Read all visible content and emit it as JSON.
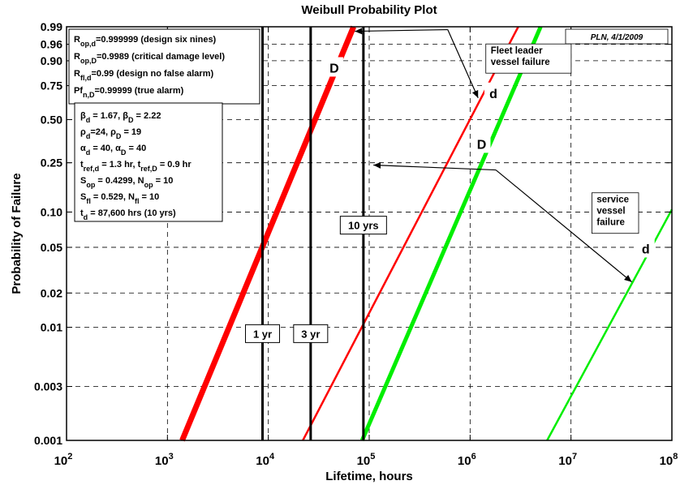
{
  "chart_data": {
    "type": "line",
    "title": "Weibull Probability Plot",
    "xlabel": "Lifetime, hours",
    "ylabel": "Probability of Failure",
    "x_scale": "log",
    "y_scale": "weibull",
    "xlim": [
      100,
      100000000
    ],
    "ylim": [
      0.001,
      0.99
    ],
    "grid": true,
    "x_ticks": [
      {
        "value": 100,
        "base": "10",
        "exp": "2"
      },
      {
        "value": 1000,
        "base": "10",
        "exp": "3"
      },
      {
        "value": 10000,
        "base": "10",
        "exp": "4"
      },
      {
        "value": 100000,
        "base": "10",
        "exp": "5"
      },
      {
        "value": 1000000,
        "base": "10",
        "exp": "6"
      },
      {
        "value": 10000000,
        "base": "10",
        "exp": "7"
      },
      {
        "value": 100000000,
        "base": "10",
        "exp": "8"
      }
    ],
    "y_ticks": [
      {
        "value": 0.99,
        "label": "0.99"
      },
      {
        "value": 0.96,
        "label": "0.96"
      },
      {
        "value": 0.9,
        "label": "0.90"
      },
      {
        "value": 0.75,
        "label": "0.75"
      },
      {
        "value": 0.5,
        "label": "0.50"
      },
      {
        "value": 0.25,
        "label": "0.25"
      },
      {
        "value": 0.1,
        "label": "0.10"
      },
      {
        "value": 0.05,
        "label": "0.05"
      },
      {
        "value": 0.02,
        "label": "0.02"
      },
      {
        "value": 0.01,
        "label": "0.01"
      },
      {
        "value": 0.003,
        "label": "0.003"
      },
      {
        "value": 0.001,
        "label": "0.001"
      }
    ],
    "series": [
      {
        "id": "fleet-D",
        "color": "#ff0000",
        "width": 7,
        "x": [
          1400,
          70000
        ],
        "y": [
          0.001,
          0.99
        ]
      },
      {
        "id": "fleet-d",
        "color": "#ff0000",
        "width": 2.5,
        "x": [
          22000,
          3000000
        ],
        "y": [
          0.001,
          0.99
        ]
      },
      {
        "id": "service-D",
        "color": "#00ee00",
        "width": 5,
        "x": [
          85000,
          5000000
        ],
        "y": [
          0.001,
          0.99
        ]
      },
      {
        "id": "service-d",
        "color": "#00ee00",
        "width": 2.5,
        "x": [
          5800000,
          100000000
        ],
        "y": [
          0.001,
          0.105
        ]
      }
    ],
    "vlines": [
      {
        "x": 8760,
        "label": "1 yr",
        "label_y": 0.0085
      },
      {
        "x": 26280,
        "label": "3 yr",
        "label_y": 0.0085
      },
      {
        "x": 87600,
        "label": "10 yrs",
        "label_y": 0.075
      }
    ],
    "annotations": [
      {
        "text": "D",
        "x": 45000,
        "y": 0.86
      },
      {
        "text": "d",
        "x": 1700000,
        "y": 0.69
      },
      {
        "text": "D",
        "x": 1300000,
        "y": 0.34
      },
      {
        "text": "d",
        "x": 55000000,
        "y": 0.048
      }
    ],
    "callouts": [
      {
        "lines": [
          "Fleet leader",
          "vessel failure"
        ],
        "x": 1600000,
        "y": 0.93,
        "arrow_from": [
          600000,
          0.987
        ],
        "arrow_to": [
          72000,
          0.985
        ],
        "arrow_to2": [
          1200000,
          0.66
        ]
      },
      {
        "lines": [
          "service",
          "vessel",
          "failure"
        ],
        "x": 18000000,
        "y": 0.12,
        "arrow_from": [
          1800000,
          0.22
        ],
        "arrow_to": [
          110000,
          0.24
        ],
        "arrow_to2": [
          40000000,
          0.025
        ]
      }
    ],
    "stamp": "PLN, 4/1/2009",
    "legend_box_1": [
      {
        "main": "R",
        "sub": "op,d",
        "rest": "=0.999999 (design six nines)"
      },
      {
        "main": "R",
        "sub": "op,D",
        "rest": "=0.9989 (critical damage level)"
      },
      {
        "main": "R",
        "sub": "fl,d",
        "rest": "=0.99 (design no false alarm)"
      },
      {
        "main": "Pf",
        "sub": "n,D",
        "rest": "=0.99999 (true alarm)"
      }
    ],
    "legend_box_2": [
      [
        {
          "t": "β"
        },
        {
          "s": "d"
        },
        {
          "t": " = 1.67, β"
        },
        {
          "s": "D"
        },
        {
          "t": " = 2.22"
        }
      ],
      [
        {
          "t": "ρ"
        },
        {
          "s": "d"
        },
        {
          "t": "=24, ρ"
        },
        {
          "s": "D"
        },
        {
          "t": " = 19"
        }
      ],
      [
        {
          "t": "α"
        },
        {
          "s": "d"
        },
        {
          "t": " = 40, α"
        },
        {
          "s": "D"
        },
        {
          "t": " = 40"
        }
      ],
      [
        {
          "t": "t"
        },
        {
          "s": "ref,d"
        },
        {
          "t": " = 1.3 hr, t"
        },
        {
          "s": "ref,D"
        },
        {
          "t": " = 0.9 hr"
        }
      ],
      [
        {
          "t": "S"
        },
        {
          "s": "op"
        },
        {
          "t": " = 0.4299, N"
        },
        {
          "s": "op"
        },
        {
          "t": " = 10"
        }
      ],
      [
        {
          "t": "S"
        },
        {
          "s": "fl"
        },
        {
          "t": " = 0.529, N"
        },
        {
          "s": "fl"
        },
        {
          "t": " = 10"
        }
      ],
      [
        {
          "t": "t"
        },
        {
          "s": "d"
        },
        {
          "t": " = 87,600 hrs (10 yrs)"
        }
      ]
    ]
  }
}
